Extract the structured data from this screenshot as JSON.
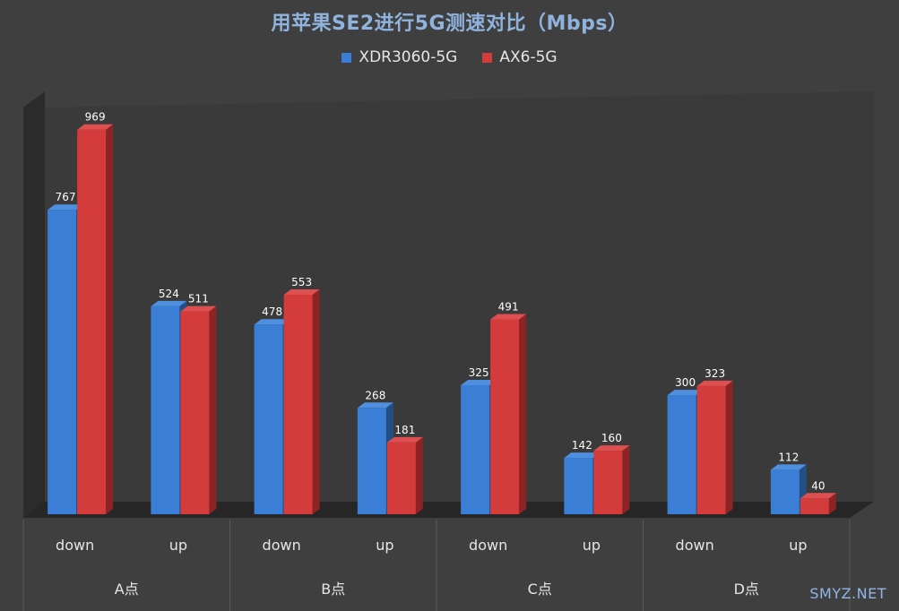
{
  "chart_data": {
    "type": "bar",
    "title": "用苹果SE2进行5G测速对比（Mbps）",
    "groups": [
      "A点",
      "B点",
      "C点",
      "D点"
    ],
    "categories": [
      "down",
      "up",
      "down",
      "up",
      "down",
      "up",
      "down",
      "up"
    ],
    "series": [
      {
        "name": "XDR3060-5G",
        "values": [
          767,
          524,
          478,
          268,
          325,
          142,
          300,
          112
        ]
      },
      {
        "name": "AX6-5G",
        "values": [
          969,
          511,
          553,
          181,
          491,
          160,
          323,
          40
        ]
      }
    ],
    "ylim": [
      0,
      1000
    ],
    "grid": false,
    "legend": "top-center"
  },
  "colors": {
    "series_front": [
      "#3a7fd5",
      "#d43b3b"
    ],
    "series_side": [
      "#244f85",
      "#8c2424"
    ],
    "series_top": [
      "#4f8fdf",
      "#de5050"
    ],
    "background": "#3f3f3f",
    "plot_back": "#3a3a3a",
    "plot_floor": "#262626"
  },
  "watermark": "SMYZ.NET"
}
